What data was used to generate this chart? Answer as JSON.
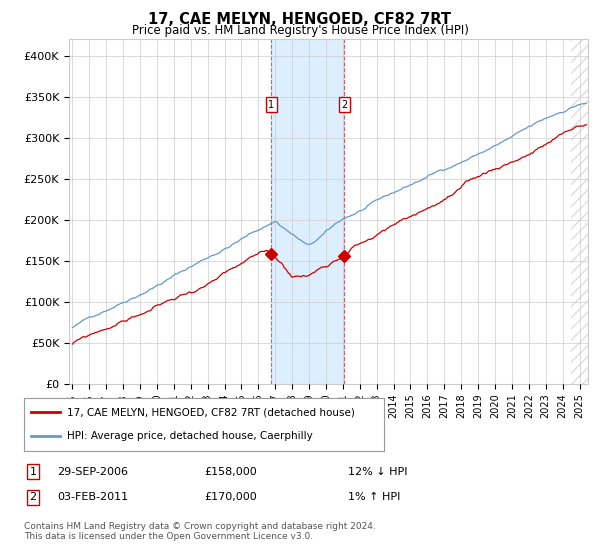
{
  "title": "17, CAE MELYN, HENGOED, CF82 7RT",
  "subtitle": "Price paid vs. HM Land Registry's House Price Index (HPI)",
  "ylabel_ticks": [
    "£0",
    "£50K",
    "£100K",
    "£150K",
    "£200K",
    "£250K",
    "£300K",
    "£350K",
    "£400K"
  ],
  "y_values": [
    0,
    50000,
    100000,
    150000,
    200000,
    250000,
    300000,
    350000,
    400000
  ],
  "ylim": [
    0,
    420000
  ],
  "xlim_start": 1994.8,
  "xlim_end": 2025.5,
  "transaction1": {
    "date": "29-SEP-2006",
    "price": 158000,
    "label": "1",
    "year": 2006.75,
    "hpi_pct": "12%",
    "hpi_dir": "↓"
  },
  "transaction2": {
    "date": "03-FEB-2011",
    "price": 170000,
    "label": "2",
    "year": 2011.08,
    "hpi_pct": "1%",
    "hpi_dir": "↑"
  },
  "legend_line1": "17, CAE MELYN, HENGOED, CF82 7RT (detached house)",
  "legend_line2": "HPI: Average price, detached house, Caerphilly",
  "footnote": "Contains HM Land Registry data © Crown copyright and database right 2024.\nThis data is licensed under the Open Government Licence v3.0.",
  "line_color_red": "#cc0000",
  "line_color_blue": "#6699cc",
  "shade_color": "#ddeeff",
  "grid_color": "#cccccc",
  "background_color": "#ffffff"
}
